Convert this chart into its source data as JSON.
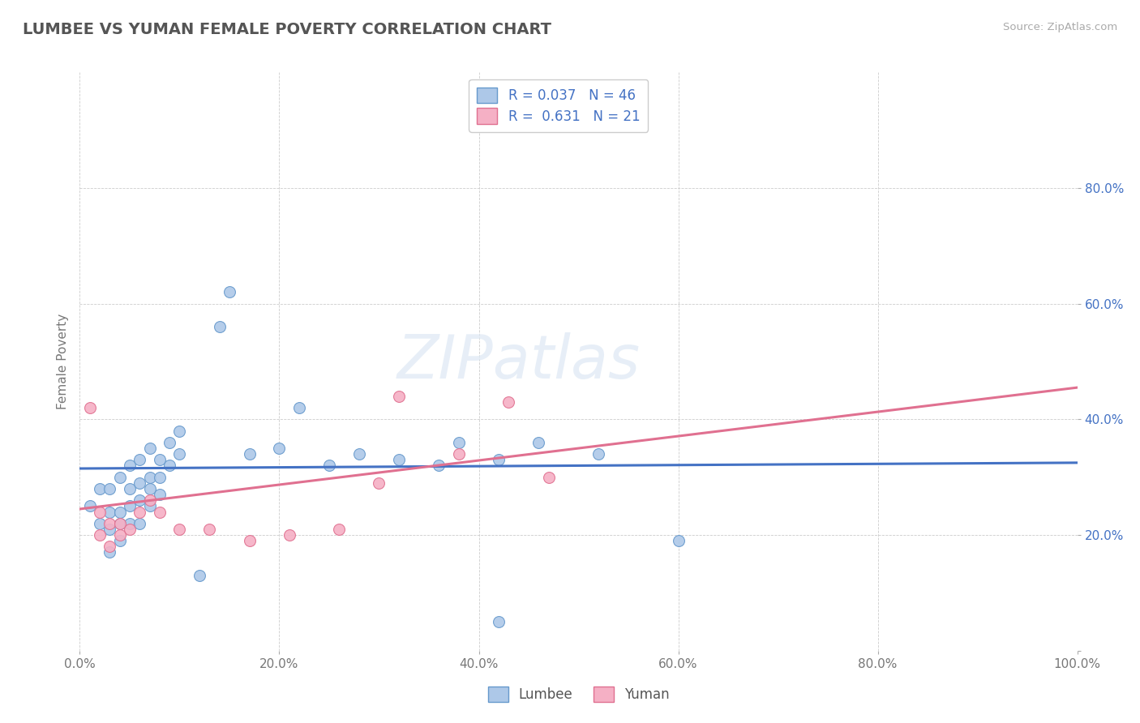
{
  "title": "LUMBEE VS YUMAN FEMALE POVERTY CORRELATION CHART",
  "source": "Source: ZipAtlas.com",
  "ylabel": "Female Poverty",
  "xlim": [
    0,
    1.0
  ],
  "ylim": [
    0.0,
    1.0
  ],
  "lumbee_color": "#adc8e8",
  "yuman_color": "#f5b0c5",
  "lumbee_edge": "#6699cc",
  "yuman_edge": "#e07090",
  "trend_lumbee": "#4472c4",
  "trend_yuman": "#e07090",
  "R_lumbee": 0.037,
  "N_lumbee": 46,
  "R_yuman": 0.631,
  "N_yuman": 21,
  "lumbee_x": [
    0.01,
    0.02,
    0.02,
    0.03,
    0.03,
    0.03,
    0.03,
    0.04,
    0.04,
    0.04,
    0.04,
    0.05,
    0.05,
    0.05,
    0.05,
    0.06,
    0.06,
    0.06,
    0.06,
    0.07,
    0.07,
    0.07,
    0.07,
    0.08,
    0.08,
    0.08,
    0.09,
    0.09,
    0.1,
    0.1,
    0.12,
    0.14,
    0.15,
    0.17,
    0.2,
    0.22,
    0.25,
    0.28,
    0.32,
    0.36,
    0.38,
    0.42,
    0.46,
    0.52,
    0.6,
    0.42
  ],
  "lumbee_y": [
    0.25,
    0.22,
    0.28,
    0.17,
    0.21,
    0.24,
    0.28,
    0.19,
    0.22,
    0.24,
    0.3,
    0.22,
    0.25,
    0.28,
    0.32,
    0.22,
    0.26,
    0.29,
    0.33,
    0.25,
    0.28,
    0.3,
    0.35,
    0.27,
    0.3,
    0.33,
    0.32,
    0.36,
    0.34,
    0.38,
    0.13,
    0.56,
    0.62,
    0.34,
    0.35,
    0.42,
    0.32,
    0.34,
    0.33,
    0.32,
    0.36,
    0.33,
    0.36,
    0.34,
    0.19,
    0.05
  ],
  "yuman_x": [
    0.01,
    0.02,
    0.02,
    0.03,
    0.03,
    0.04,
    0.04,
    0.05,
    0.06,
    0.07,
    0.08,
    0.1,
    0.13,
    0.17,
    0.21,
    0.26,
    0.3,
    0.38,
    0.43,
    0.47,
    0.32
  ],
  "yuman_y": [
    0.42,
    0.2,
    0.24,
    0.18,
    0.22,
    0.2,
    0.22,
    0.21,
    0.24,
    0.26,
    0.24,
    0.21,
    0.21,
    0.19,
    0.2,
    0.21,
    0.29,
    0.34,
    0.43,
    0.3,
    0.44
  ],
  "watermark": "ZIPatlas",
  "background_color": "#ffffff",
  "grid_color": "#cccccc",
  "marker_size": 100
}
